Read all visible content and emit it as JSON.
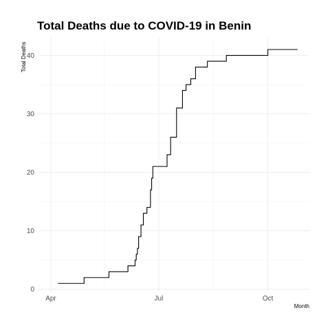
{
  "chart_data": {
    "type": "line",
    "title": "Total Deaths due to COVID-19 in Benin",
    "xlabel": "Month",
    "ylabel": "Total Deaths",
    "x_type": "date",
    "xlim": [
      "2020-03-21",
      "2020-11-05"
    ],
    "ylim": [
      -0.5,
      43
    ],
    "x_ticks": [
      {
        "date": "2020-04-01",
        "label": "Apr"
      },
      {
        "date": "2020-07-01",
        "label": "Jul"
      },
      {
        "date": "2020-10-01",
        "label": "Oct"
      }
    ],
    "x_minor_ticks": [
      "2020-05-16",
      "2020-08-16"
    ],
    "y_ticks": [
      0,
      10,
      20,
      30,
      40
    ],
    "y_minor_ticks": [
      5,
      15,
      25,
      35
    ],
    "grid": true,
    "legend": "none",
    "series": [
      {
        "step": true,
        "points": [
          {
            "x": "2020-04-07",
            "y": 1
          },
          {
            "x": "2020-04-29",
            "y": 2
          },
          {
            "x": "2020-05-20",
            "y": 3
          },
          {
            "x": "2020-06-05",
            "y": 4
          },
          {
            "x": "2020-06-11",
            "y": 5
          },
          {
            "x": "2020-06-12",
            "y": 6
          },
          {
            "x": "2020-06-13",
            "y": 7
          },
          {
            "x": "2020-06-14",
            "y": 9
          },
          {
            "x": "2020-06-16",
            "y": 11
          },
          {
            "x": "2020-06-18",
            "y": 13
          },
          {
            "x": "2020-06-21",
            "y": 14
          },
          {
            "x": "2020-06-24",
            "y": 17
          },
          {
            "x": "2020-06-25",
            "y": 19
          },
          {
            "x": "2020-06-26",
            "y": 21
          },
          {
            "x": "2020-07-08",
            "y": 23
          },
          {
            "x": "2020-07-11",
            "y": 26
          },
          {
            "x": "2020-07-16",
            "y": 31
          },
          {
            "x": "2020-07-21",
            "y": 34
          },
          {
            "x": "2020-07-24",
            "y": 35
          },
          {
            "x": "2020-07-28",
            "y": 36
          },
          {
            "x": "2020-08-01",
            "y": 38
          },
          {
            "x": "2020-08-11",
            "y": 39
          },
          {
            "x": "2020-08-27",
            "y": 40
          },
          {
            "x": "2020-10-01",
            "y": 41
          },
          {
            "x": "2020-10-26",
            "y": 41
          }
        ]
      }
    ]
  }
}
